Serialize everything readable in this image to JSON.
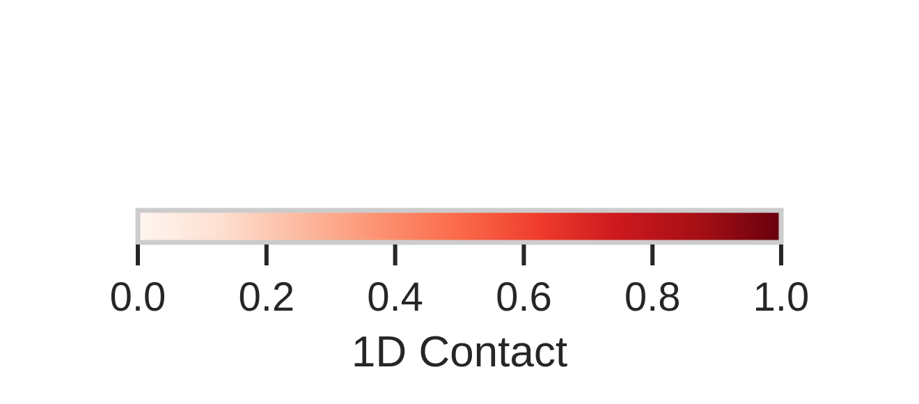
{
  "chart_data": {
    "type": "colorbar",
    "orientation": "horizontal",
    "colormap": "Reds",
    "vmin": 0.0,
    "vmax": 1.0,
    "ticks": [
      0.0,
      0.2,
      0.4,
      0.6,
      0.8,
      1.0
    ],
    "tick_labels": [
      "0.0",
      "0.2",
      "0.4",
      "0.6",
      "0.8",
      "1.0"
    ],
    "xlabel": "1D Contact",
    "colors": {
      "stops": [
        "#fff5f0",
        "#fee0d2",
        "#fcbba1",
        "#fc9272",
        "#fb6a4a",
        "#ef3b2c",
        "#cb181d",
        "#a50f15",
        "#67000d"
      ],
      "frame": "#cccccc",
      "tick": "#262626",
      "text": "#262626"
    }
  }
}
